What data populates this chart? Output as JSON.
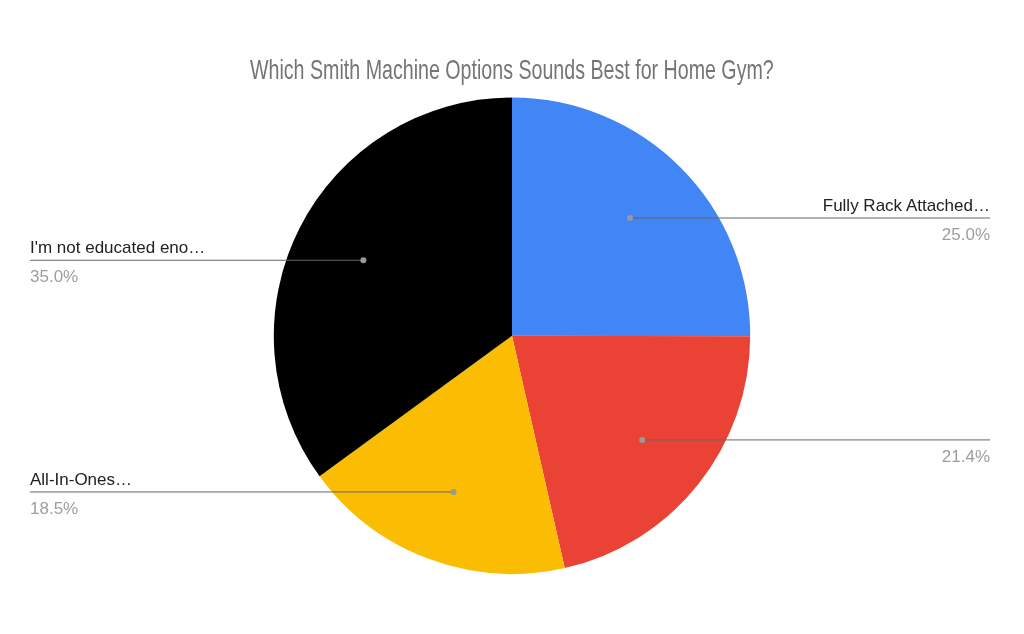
{
  "chart_data": {
    "type": "pie",
    "title": "Which Smith Machine Options Sounds Best for Home Gym?",
    "categories": [
      "Fully Rack Attached…",
      null,
      "All-In-Ones…",
      "I'm not educated eno…"
    ],
    "values": [
      25.0,
      21.4,
      18.5,
      35.0
    ],
    "colors": [
      "#4285f4",
      "#ea4335",
      "#fbbc04",
      "#000000"
    ],
    "value_labels": [
      "25.0%",
      "21.4%",
      "18.5%",
      "35.0%"
    ],
    "legend": false
  }
}
